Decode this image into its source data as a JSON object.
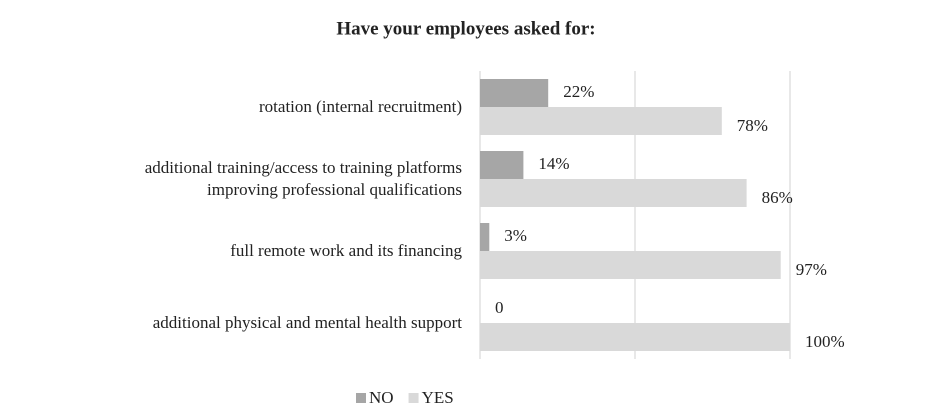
{
  "chart_data": {
    "type": "bar",
    "orientation": "horizontal",
    "title": "Have your employees asked for:",
    "categories": [
      "rotation (internal recruitment)",
      "additional training/access to training platforms\nimproving professional qualifications",
      "full remote work and its financing",
      "additional physical and mental health support"
    ],
    "series": [
      {
        "name": "NO",
        "color": "#a6a6a6",
        "values": [
          22,
          14,
          3,
          0
        ],
        "value_labels": [
          "22%",
          "14%",
          "3%",
          "0"
        ]
      },
      {
        "name": "YES",
        "color": "#d9d9d9",
        "values": [
          78,
          86,
          97,
          100
        ],
        "value_labels": [
          "78%",
          "86%",
          "97%",
          "100%"
        ]
      }
    ],
    "xlim": [
      0,
      100
    ],
    "xticks": [
      0,
      50,
      100
    ],
    "grid": true,
    "legend": "bottom"
  }
}
